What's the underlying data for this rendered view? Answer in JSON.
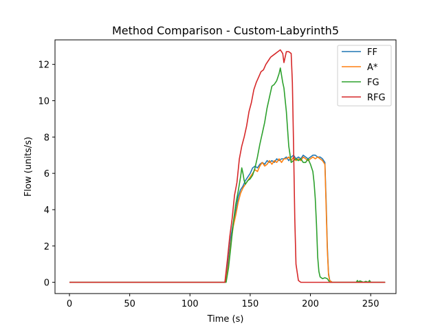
{
  "chart_data": {
    "type": "line",
    "title": "Method Comparison - Custom-Labyrinth5",
    "xlabel": "Time (s)",
    "ylabel": "Flow (units/s)",
    "xlim": [
      -12,
      271
    ],
    "ylim": [
      -0.62,
      13.35
    ],
    "xticks": [
      0,
      50,
      100,
      150,
      200,
      250
    ],
    "yticks": [
      0,
      2,
      4,
      6,
      8,
      10,
      12
    ],
    "grid": false,
    "legend": "top-right",
    "series": [
      {
        "name": "FF",
        "color": "#1f77b4",
        "x": [
          0,
          129,
          130,
          132,
          134,
          136,
          138,
          140,
          142,
          144,
          146,
          148,
          150,
          152,
          154,
          156,
          158,
          160,
          162,
          164,
          166,
          168,
          170,
          172,
          174,
          176,
          178,
          180,
          182,
          184,
          186,
          188,
          190,
          192,
          194,
          196,
          198,
          200,
          202,
          204,
          206,
          208,
          210,
          212,
          213,
          214,
          215,
          216,
          217,
          218,
          262
        ],
        "y": [
          0,
          0,
          0.2,
          1.3,
          2.5,
          3.3,
          3.9,
          4.7,
          5.1,
          5.3,
          5.6,
          5.8,
          6.0,
          6.3,
          6.4,
          6.3,
          6.5,
          6.6,
          6.5,
          6.7,
          6.6,
          6.7,
          6.6,
          6.8,
          6.7,
          6.8,
          6.8,
          6.9,
          6.7,
          6.9,
          7.0,
          6.8,
          6.9,
          6.8,
          7.0,
          6.9,
          6.8,
          6.9,
          7.0,
          7.0,
          6.9,
          6.9,
          6.8,
          6.6,
          4.5,
          2.0,
          0.5,
          0.1,
          0.05,
          0,
          0
        ]
      },
      {
        "name": "A*",
        "color": "#ff7f0e",
        "x": [
          0,
          129,
          130,
          132,
          134,
          136,
          138,
          140,
          142,
          144,
          146,
          148,
          150,
          152,
          154,
          156,
          158,
          160,
          162,
          164,
          166,
          168,
          170,
          172,
          174,
          176,
          178,
          180,
          182,
          184,
          186,
          188,
          190,
          192,
          194,
          196,
          198,
          200,
          202,
          204,
          206,
          208,
          210,
          212,
          213,
          214,
          215,
          216,
          217,
          218,
          262
        ],
        "y": [
          0,
          0,
          0.1,
          1.0,
          2.2,
          3.1,
          3.7,
          4.4,
          4.9,
          5.2,
          5.4,
          5.6,
          5.8,
          6.0,
          6.2,
          6.1,
          6.4,
          6.6,
          6.4,
          6.5,
          6.7,
          6.5,
          6.7,
          6.6,
          6.8,
          6.6,
          6.8,
          6.8,
          6.9,
          6.7,
          6.9,
          6.7,
          6.8,
          6.7,
          6.9,
          6.8,
          6.7,
          6.8,
          6.9,
          6.8,
          6.9,
          6.8,
          6.7,
          6.5,
          4.2,
          1.8,
          0.4,
          0.1,
          0.05,
          0,
          0
        ]
      },
      {
        "name": "FG",
        "color": "#2ca02c",
        "x": [
          0,
          130,
          132,
          134,
          136,
          138,
          140,
          142,
          143,
          144,
          145,
          146,
          148,
          150,
          152,
          154,
          156,
          158,
          160,
          162,
          164,
          166,
          168,
          170,
          172,
          174,
          175,
          176,
          177,
          178,
          180,
          182,
          184,
          186,
          188,
          190,
          192,
          194,
          196,
          198,
          200,
          202,
          203,
          204,
          205,
          206,
          207,
          208,
          210,
          212,
          214,
          215,
          216,
          238,
          239,
          240,
          241,
          244,
          246,
          248,
          249,
          250,
          252,
          262
        ],
        "y": [
          0,
          0,
          0.8,
          2.0,
          3.3,
          4.3,
          5.0,
          5.8,
          6.3,
          6.0,
          5.6,
          5.4,
          5.6,
          5.7,
          5.9,
          6.3,
          6.9,
          7.6,
          8.2,
          8.8,
          9.6,
          10.2,
          10.8,
          10.9,
          11.1,
          11.5,
          11.8,
          11.4,
          11.0,
          10.7,
          9.4,
          7.5,
          6.6,
          6.7,
          6.8,
          6.7,
          6.8,
          6.6,
          6.6,
          6.8,
          6.5,
          6.1,
          5.5,
          4.6,
          3.2,
          1.4,
          0.6,
          0.3,
          0.2,
          0.25,
          0.2,
          0.1,
          0,
          0,
          0.1,
          0,
          0.08,
          0,
          0.05,
          0,
          0.1,
          0,
          0,
          0
        ]
      },
      {
        "name": "RFG",
        "color": "#d62728",
        "x": [
          0,
          129,
          131,
          133,
          135,
          137,
          139,
          141,
          143,
          145,
          147,
          149,
          151,
          153,
          155,
          157,
          159,
          161,
          163,
          165,
          167,
          169,
          171,
          173,
          175,
          177,
          178,
          180,
          182,
          184,
          185,
          186,
          187,
          188,
          190,
          192,
          262
        ],
        "y": [
          0,
          0,
          1.2,
          2.5,
          3.5,
          4.8,
          5.5,
          6.8,
          7.5,
          8.0,
          8.6,
          9.4,
          9.9,
          10.6,
          11.0,
          11.3,
          11.6,
          11.7,
          12.0,
          12.2,
          12.4,
          12.5,
          12.6,
          12.7,
          12.8,
          12.6,
          12.1,
          12.7,
          12.7,
          12.6,
          11.0,
          7.5,
          3.5,
          1.0,
          0.1,
          0,
          0
        ]
      }
    ]
  }
}
